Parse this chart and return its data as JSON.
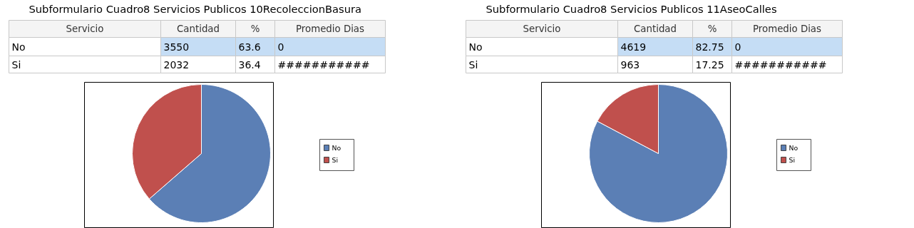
{
  "chart_data": [
    {
      "type": "pie",
      "title": "Subformulario Cuadro8  Servicios Publicos  10RecoleccionBasura",
      "categories": [
        "No",
        "Si"
      ],
      "values": [
        63.6,
        36.4
      ],
      "colors": [
        "#5b7fb5",
        "#c0504d"
      ],
      "legend": "right",
      "annotations": [
        "Servicio",
        "Cantidad",
        "%",
        "Promedio Dias",
        "3550",
        "63.6",
        "0",
        "2032",
        "36.4",
        "###########"
      ]
    },
    {
      "type": "pie",
      "title": "Subformulario Cuadro8  Servicios Publicos  11AseoCalles",
      "categories": [
        "No",
        "Si"
      ],
      "values": [
        82.75,
        17.25
      ],
      "colors": [
        "#5b7fb5",
        "#c0504d"
      ],
      "legend": "right",
      "annotations": [
        "Servicio",
        "Cantidad",
        "%",
        "Promedio Dias",
        "4619",
        "82.75",
        "0",
        "963",
        "17.25",
        "###########"
      ]
    }
  ]
}
